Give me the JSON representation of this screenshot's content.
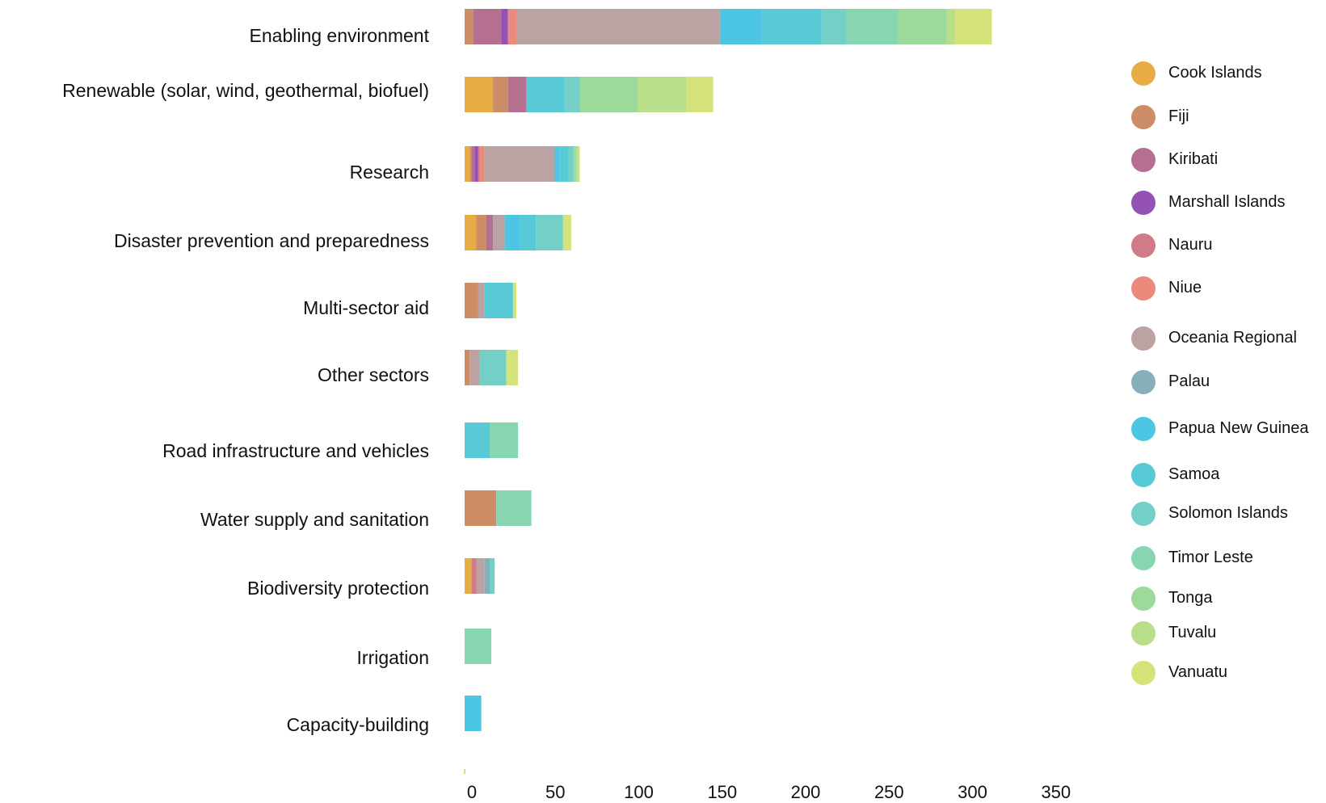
{
  "chart_data": {
    "type": "bar",
    "orientation": "horizontal",
    "stacked": true,
    "title": "",
    "xlabel": "",
    "ylabel": "",
    "xlim": [
      0,
      350
    ],
    "x_ticks": [
      0,
      50,
      100,
      150,
      200,
      250,
      300,
      350
    ],
    "grid": false,
    "legend_position": "right",
    "categories": [
      "Enabling environment",
      "Renewable (solar, wind, geothermal, biofuel)",
      "Research",
      "Disaster prevention and preparedness",
      "Multi-sector aid",
      "Other sectors",
      "Road infrastructure and vehicles",
      "Water supply and sanitation",
      "Biodiversity protection",
      "Irrigation",
      "Capacity-building"
    ],
    "series": [
      {
        "name": "Cook Islands",
        "color": "#e8ac45",
        "values": [
          0,
          17,
          3,
          7,
          0,
          0,
          0,
          0,
          4,
          0,
          0
        ]
      },
      {
        "name": "Fiji",
        "color": "#cd8d67",
        "values": [
          5,
          9,
          1,
          6,
          8,
          3,
          0,
          19,
          0,
          0,
          0
        ]
      },
      {
        "name": "Kiribati",
        "color": "#b5708f",
        "values": [
          17,
          11,
          2,
          4,
          0,
          0,
          0,
          0,
          0,
          0,
          0
        ]
      },
      {
        "name": "Marshall Islands",
        "color": "#9552b5",
        "values": [
          4,
          0,
          2,
          0,
          0,
          0,
          0,
          0,
          0,
          0,
          0
        ]
      },
      {
        "name": "Nauru",
        "color": "#d07a8a",
        "values": [
          0,
          0,
          1,
          0,
          0,
          0,
          0,
          0,
          3,
          0,
          0
        ]
      },
      {
        "name": "Niue",
        "color": "#ea8a7c",
        "values": [
          5,
          0,
          3,
          0,
          0,
          0,
          0,
          0,
          0,
          0,
          0
        ]
      },
      {
        "name": "Oceania Regional",
        "color": "#bba2a3",
        "values": [
          122,
          0,
          42,
          7,
          4,
          6,
          0,
          0,
          5,
          0,
          0
        ]
      },
      {
        "name": "Palau",
        "color": "#86afbb",
        "values": [
          0,
          0,
          0,
          0,
          0,
          0,
          0,
          0,
          3,
          0,
          0
        ]
      },
      {
        "name": "Papua New Guinea",
        "color": "#4cc6e2",
        "values": [
          25,
          0,
          3,
          9,
          0,
          0,
          0,
          0,
          0,
          0,
          10
        ]
      },
      {
        "name": "Samoa",
        "color": "#58cad6",
        "values": [
          36,
          23,
          5,
          10,
          17,
          0,
          15,
          0,
          0,
          0,
          0
        ]
      },
      {
        "name": "Solomon Islands",
        "color": "#74d0c6",
        "values": [
          15,
          9,
          3,
          16,
          0,
          16,
          0,
          0,
          3,
          0,
          0
        ]
      },
      {
        "name": "Timor Leste",
        "color": "#88d5b2",
        "values": [
          31,
          0,
          1,
          0,
          0,
          0,
          17,
          21,
          0,
          16,
          0
        ]
      },
      {
        "name": "Tonga",
        "color": "#9ed99c",
        "values": [
          29,
          35,
          1,
          0,
          0,
          0,
          0,
          0,
          0,
          0,
          0
        ]
      },
      {
        "name": "Tuvalu",
        "color": "#b9df8b",
        "values": [
          5,
          29,
          1,
          0,
          0,
          0,
          0,
          0,
          0,
          0,
          0
        ]
      },
      {
        "name": "Vanuatu",
        "color": "#d6e27a",
        "values": [
          22,
          16,
          1,
          5,
          2,
          7,
          0,
          0,
          0,
          0,
          0
        ]
      }
    ]
  }
}
